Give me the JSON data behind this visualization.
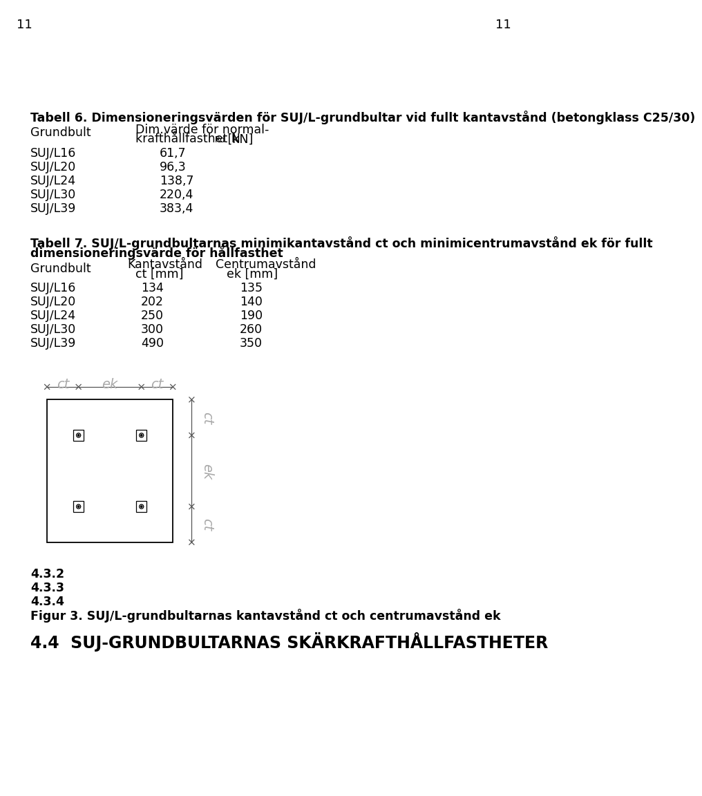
{
  "page_number": "11",
  "background_color": "#ffffff",
  "text_color": "#000000",
  "table6_title": "Tabell 6. Dimensioneringsvärden för SUJ/L-grundbultar vid fullt kantavstånd (betongklass C25/30)",
  "table6_col1_header": "Grundbult",
  "table6_col2_header_line1": "Dim.värde för normal-",
  "table6_col2_header_line2": "krafthållfasthet N",
  "table6_col2_header_sub": "Rd",
  "table6_col2_header_unit": " [kN]",
  "table6_rows": [
    [
      "SUJ/L16",
      "61,7"
    ],
    [
      "SUJ/L20",
      "96,3"
    ],
    [
      "SUJ/L24",
      "138,7"
    ],
    [
      "SUJ/L30",
      "220,4"
    ],
    [
      "SUJ/L39",
      "383,4"
    ]
  ],
  "table7_title_line1": "Tabell 7. SUJ/L-grundbultarnas minimikantavstånd ct och minimicentrumavstånd ek för fullt",
  "table7_title_line2": "dimensioneringsvärde för hållfasthet",
  "table7_col1_header": "Grundbult",
  "table7_col2_header_line1": "Kantavstånd",
  "table7_col2_header_line2": "ct [mm]",
  "table7_col3_header_line1": "Centrumavstånd",
  "table7_col3_header_line2": "ek [mm]",
  "table7_rows": [
    [
      "SUJ/L16",
      "134",
      "135"
    ],
    [
      "SUJ/L20",
      "202",
      "140"
    ],
    [
      "SUJ/L24",
      "250",
      "190"
    ],
    [
      "SUJ/L30",
      "300",
      "260"
    ],
    [
      "SUJ/L39",
      "490",
      "350"
    ]
  ],
  "section_432": "4.3.2",
  "section_433": "4.3.3",
  "section_434": "4.3.4",
  "figure_caption": "Figur 3. SUJ/L-grundbultarnas kantavstånd ct och centrumavstånd ek",
  "section_44": "4.4  SUJ-GRUNDBULTARNAS SKÄRKRAFTHÅLLFASTHETER",
  "label_color": "#aaaaaa",
  "diagram_line_color": "#555555"
}
